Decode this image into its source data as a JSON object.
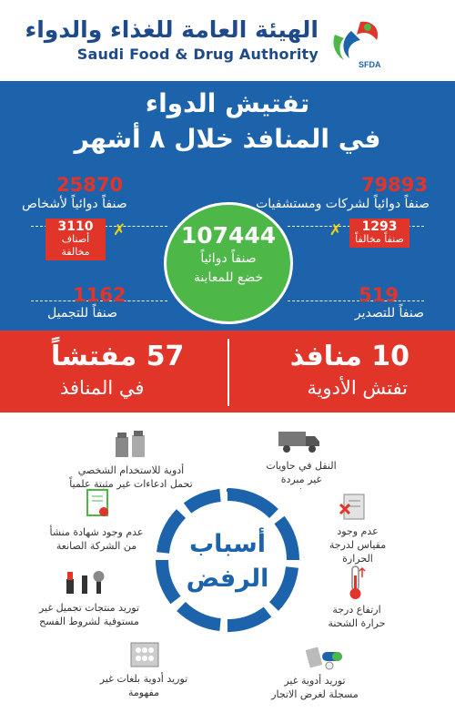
{
  "header": {
    "org_name_ar": "الهيئة العامة للغذاء والدواء",
    "org_name_en": "Saudi Food & Drug Authority",
    "logo_text": "SFDA"
  },
  "title": {
    "line1": "تفتيش الدواء",
    "line2": "في المنافذ خلال ٨ أشهر"
  },
  "center_stat": {
    "value": "107444",
    "line1": "صنفاً دوائياً",
    "line2": "خضع للمعاينة"
  },
  "stats": {
    "hospitals": {
      "value": "79893",
      "label": "صنفاً دوائياً لشركات ومستشفيات",
      "violations_value": "1293",
      "violations_label": "صنفاً مخالفاً"
    },
    "individuals": {
      "value": "25870",
      "label": "صنفاً دوائياً لأشخاص",
      "violations_value": "3110",
      "violations_label": "أصناف مخالفة"
    },
    "export": {
      "value": "519",
      "label": "صنفاً للتصدير"
    },
    "cosmetics": {
      "value": "1162",
      "label": "صنفاً للتجميل"
    }
  },
  "ports": {
    "ports_big": "10 منافذ",
    "ports_sub": "تفتش الأدوية",
    "inspectors_big": "57 مفتشاً",
    "inspectors_sub": "في المنافذ"
  },
  "reasons_title": {
    "line1": "أسباب",
    "line2": "الرفض"
  },
  "reasons": {
    "r1": "النقل في حاويات غير مبردة",
    "r2": "أدوية للاستخدام الشخصي تحمل ادعاءات غير مثبتة علمياً",
    "r3": "عدم وجود مقياس لدرجة الحرارة",
    "r4": "عدم وجود شهادة منشأ من الشركة الصانعة",
    "r5": "ارتفاع درجة حرارة الشحنة",
    "r6": "توريد منتجات تجميل غير مستوفية لشروط الفسح",
    "r7": "توريد أدوية غير مسجلة لغرض الاتجار",
    "r8": "توريد أدوية بلغات غير مفهومة"
  },
  "colors": {
    "blue": "#1d63ab",
    "green": "#4db848",
    "red": "#e2352a",
    "yellow": "#f5d20b"
  }
}
